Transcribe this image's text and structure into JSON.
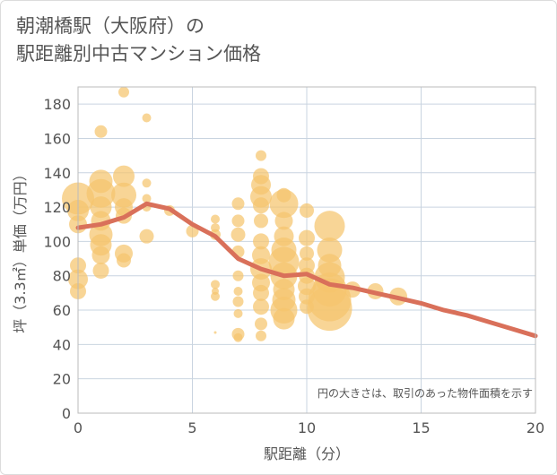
{
  "title_line1": "朝潮橋駅（大阪府）の",
  "title_line2": "駅距離別中古マンション価格",
  "note": "円の大きさは、取引のあった物件面積を示す",
  "colors": {
    "bubble": "#f5c56e",
    "line": "#d9705a",
    "grid": "#c9d4e0",
    "plot_border": "#bbbbbb"
  },
  "chart_data": {
    "type": "scatter",
    "xlabel": "駅距離（分）",
    "ylabel": "坪（3.3㎡）単価（万円）",
    "xlim": [
      0,
      20
    ],
    "ylim": [
      0,
      190
    ],
    "xticks": [
      0,
      5,
      10,
      15,
      20
    ],
    "yticks": [
      0,
      20,
      40,
      60,
      80,
      100,
      120,
      140,
      160,
      180
    ],
    "grid": true,
    "bubbles": [
      {
        "x": 0,
        "y": 125,
        "r": 18
      },
      {
        "x": 0,
        "y": 118,
        "r": 12
      },
      {
        "x": 0,
        "y": 110,
        "r": 10
      },
      {
        "x": 0,
        "y": 86,
        "r": 9
      },
      {
        "x": 0,
        "y": 78,
        "r": 11
      },
      {
        "x": 0,
        "y": 71,
        "r": 9
      },
      {
        "x": 1,
        "y": 164,
        "r": 7
      },
      {
        "x": 1,
        "y": 135,
        "r": 13
      },
      {
        "x": 1,
        "y": 128,
        "r": 16
      },
      {
        "x": 1,
        "y": 120,
        "r": 12
      },
      {
        "x": 1,
        "y": 112,
        "r": 11
      },
      {
        "x": 1,
        "y": 104,
        "r": 13
      },
      {
        "x": 1,
        "y": 98,
        "r": 12
      },
      {
        "x": 1,
        "y": 92,
        "r": 10
      },
      {
        "x": 1,
        "y": 83,
        "r": 9
      },
      {
        "x": 2,
        "y": 187,
        "r": 6
      },
      {
        "x": 2,
        "y": 138,
        "r": 12
      },
      {
        "x": 2,
        "y": 127,
        "r": 14
      },
      {
        "x": 2,
        "y": 120,
        "r": 10
      },
      {
        "x": 2,
        "y": 115,
        "r": 9
      },
      {
        "x": 2,
        "y": 93,
        "r": 10
      },
      {
        "x": 2,
        "y": 89,
        "r": 8
      },
      {
        "x": 3,
        "y": 172,
        "r": 5
      },
      {
        "x": 3,
        "y": 134,
        "r": 5
      },
      {
        "x": 3,
        "y": 125,
        "r": 5
      },
      {
        "x": 3,
        "y": 120,
        "r": 5
      },
      {
        "x": 3,
        "y": 103,
        "r": 8
      },
      {
        "x": 4,
        "y": 118,
        "r": 6
      },
      {
        "x": 5,
        "y": 106,
        "r": 7
      },
      {
        "x": 6,
        "y": 113,
        "r": 5
      },
      {
        "x": 6,
        "y": 108,
        "r": 5
      },
      {
        "x": 6,
        "y": 104,
        "r": 6
      },
      {
        "x": 6,
        "y": 75,
        "r": 5
      },
      {
        "x": 6,
        "y": 71,
        "r": 4
      },
      {
        "x": 6,
        "y": 68,
        "r": 5
      },
      {
        "x": 6,
        "y": 47,
        "r": 1.5
      },
      {
        "x": 7,
        "y": 122,
        "r": 7
      },
      {
        "x": 7,
        "y": 112,
        "r": 7
      },
      {
        "x": 7,
        "y": 104,
        "r": 8
      },
      {
        "x": 7,
        "y": 94,
        "r": 7
      },
      {
        "x": 7,
        "y": 80,
        "r": 6
      },
      {
        "x": 7,
        "y": 71,
        "r": 5
      },
      {
        "x": 7,
        "y": 65,
        "r": 6
      },
      {
        "x": 7,
        "y": 58,
        "r": 5
      },
      {
        "x": 7,
        "y": 46,
        "r": 7
      },
      {
        "x": 7,
        "y": 44,
        "r": 5
      },
      {
        "x": 8,
        "y": 150,
        "r": 6
      },
      {
        "x": 8,
        "y": 138,
        "r": 9
      },
      {
        "x": 8,
        "y": 133,
        "r": 11
      },
      {
        "x": 8,
        "y": 126,
        "r": 12
      },
      {
        "x": 8,
        "y": 121,
        "r": 9
      },
      {
        "x": 8,
        "y": 112,
        "r": 8
      },
      {
        "x": 8,
        "y": 100,
        "r": 9
      },
      {
        "x": 8,
        "y": 92,
        "r": 10
      },
      {
        "x": 8,
        "y": 84,
        "r": 12
      },
      {
        "x": 8,
        "y": 76,
        "r": 10
      },
      {
        "x": 8,
        "y": 70,
        "r": 9
      },
      {
        "x": 8,
        "y": 62,
        "r": 9
      },
      {
        "x": 8,
        "y": 52,
        "r": 7
      },
      {
        "x": 8,
        "y": 45,
        "r": 6
      },
      {
        "x": 9,
        "y": 127,
        "r": 8
      },
      {
        "x": 9,
        "y": 122,
        "r": 16
      },
      {
        "x": 9,
        "y": 112,
        "r": 10
      },
      {
        "x": 9,
        "y": 103,
        "r": 11
      },
      {
        "x": 9,
        "y": 95,
        "r": 14
      },
      {
        "x": 9,
        "y": 88,
        "r": 17
      },
      {
        "x": 9,
        "y": 80,
        "r": 15
      },
      {
        "x": 9,
        "y": 72,
        "r": 12
      },
      {
        "x": 9,
        "y": 66,
        "r": 13
      },
      {
        "x": 9,
        "y": 60,
        "r": 15
      },
      {
        "x": 9,
        "y": 55,
        "r": 12
      },
      {
        "x": 10,
        "y": 118,
        "r": 8
      },
      {
        "x": 10,
        "y": 102,
        "r": 9
      },
      {
        "x": 10,
        "y": 93,
        "r": 8
      },
      {
        "x": 10,
        "y": 86,
        "r": 9
      },
      {
        "x": 10,
        "y": 80,
        "r": 9
      },
      {
        "x": 10,
        "y": 74,
        "r": 10
      },
      {
        "x": 10,
        "y": 68,
        "r": 9
      },
      {
        "x": 10,
        "y": 62,
        "r": 8
      },
      {
        "x": 11,
        "y": 109,
        "r": 17
      },
      {
        "x": 11,
        "y": 95,
        "r": 14
      },
      {
        "x": 11,
        "y": 86,
        "r": 13
      },
      {
        "x": 11,
        "y": 79,
        "r": 17
      },
      {
        "x": 11,
        "y": 72,
        "r": 19
      },
      {
        "x": 11,
        "y": 66,
        "r": 24
      },
      {
        "x": 11,
        "y": 61,
        "r": 25
      },
      {
        "x": 12,
        "y": 72,
        "r": 9
      },
      {
        "x": 13,
        "y": 71,
        "r": 9
      },
      {
        "x": 14,
        "y": 68,
        "r": 10
      }
    ],
    "trend_line": {
      "x": [
        0,
        1,
        2,
        3,
        4,
        5,
        6,
        7,
        8,
        9,
        10,
        11,
        12,
        13,
        14,
        15,
        16,
        17,
        18,
        19,
        20
      ],
      "y": [
        108,
        110,
        114,
        122,
        119,
        110,
        103,
        90,
        84,
        80,
        81,
        75,
        73,
        70,
        67,
        64,
        60,
        57,
        53,
        49,
        45
      ]
    }
  }
}
